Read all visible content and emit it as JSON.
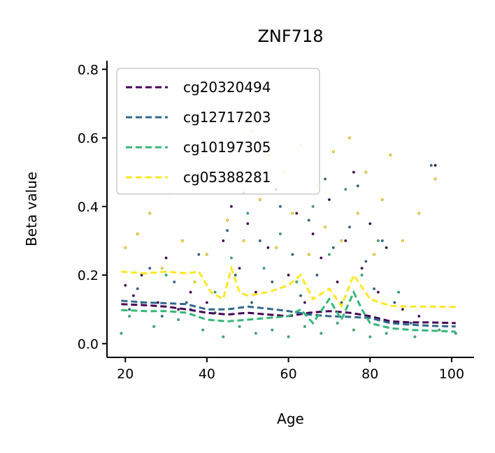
{
  "chart_data": {
    "type": "scatter",
    "title": "ZNF718",
    "xlabel": "Age",
    "ylabel": "Beta value",
    "xlim": [
      15.5,
      105.5
    ],
    "ylim": [
      -0.04,
      0.825
    ],
    "xticks": [
      20,
      40,
      60,
      80,
      100
    ],
    "xtick_labels": [
      "20",
      "40",
      "60",
      "80",
      "100"
    ],
    "yticks": [
      0.0,
      0.2,
      0.4,
      0.6,
      0.8
    ],
    "ytick_labels": [
      "0.0",
      "0.2",
      "0.4",
      "0.6",
      "0.8"
    ],
    "grid": false,
    "legend_position": "upper-left",
    "series": [
      {
        "name": "cg20320494",
        "color": "#440154",
        "trend": [
          [
            19,
            0.115
          ],
          [
            25,
            0.112
          ],
          [
            30,
            0.108
          ],
          [
            35,
            0.1
          ],
          [
            40,
            0.09
          ],
          [
            45,
            0.085
          ],
          [
            50,
            0.09
          ],
          [
            55,
            0.085
          ],
          [
            60,
            0.08
          ],
          [
            65,
            0.09
          ],
          [
            70,
            0.095
          ],
          [
            75,
            0.09
          ],
          [
            80,
            0.08
          ],
          [
            85,
            0.065
          ],
          [
            90,
            0.062
          ],
          [
            95,
            0.062
          ],
          [
            101,
            0.06
          ]
        ],
        "points": [
          [
            20,
            0.17
          ],
          [
            22,
            0.14
          ],
          [
            24,
            0.2
          ],
          [
            28,
            0.12
          ],
          [
            30,
            0.25
          ],
          [
            33,
            0.1
          ],
          [
            36,
            0.15
          ],
          [
            40,
            0.12
          ],
          [
            44,
            0.3
          ],
          [
            46,
            0.4
          ],
          [
            48,
            0.22
          ],
          [
            50,
            0.35
          ],
          [
            52,
            0.15
          ],
          [
            55,
            0.28
          ],
          [
            57,
            0.45
          ],
          [
            60,
            0.2
          ],
          [
            62,
            0.38
          ],
          [
            64,
            0.12
          ],
          [
            66,
            0.32
          ],
          [
            68,
            0.25
          ],
          [
            70,
            0.42
          ],
          [
            72,
            0.18
          ],
          [
            74,
            0.3
          ],
          [
            76,
            0.5
          ],
          [
            78,
            0.22
          ],
          [
            80,
            0.35
          ],
          [
            82,
            0.15
          ],
          [
            84,
            0.28
          ],
          [
            88,
            0.1
          ],
          [
            92,
            0.08
          ],
          [
            96,
            0.52
          ]
        ]
      },
      {
        "name": "cg12717203",
        "color": "#31688e",
        "trend": [
          [
            19,
            0.125
          ],
          [
            25,
            0.12
          ],
          [
            30,
            0.118
          ],
          [
            35,
            0.115
          ],
          [
            40,
            0.1
          ],
          [
            45,
            0.1
          ],
          [
            50,
            0.108
          ],
          [
            55,
            0.102
          ],
          [
            60,
            0.095
          ],
          [
            65,
            0.085
          ],
          [
            70,
            0.08
          ],
          [
            75,
            0.078
          ],
          [
            80,
            0.075
          ],
          [
            85,
            0.06
          ],
          [
            90,
            0.055
          ],
          [
            95,
            0.052
          ],
          [
            101,
            0.05
          ]
        ],
        "points": [
          [
            21,
            0.1
          ],
          [
            23,
            0.16
          ],
          [
            26,
            0.22
          ],
          [
            29,
            0.08
          ],
          [
            32,
            0.18
          ],
          [
            35,
            0.12
          ],
          [
            38,
            0.26
          ],
          [
            42,
            0.09
          ],
          [
            45,
            0.33
          ],
          [
            47,
            0.2
          ],
          [
            49,
            0.44
          ],
          [
            51,
            0.12
          ],
          [
            53,
            0.3
          ],
          [
            56,
            0.18
          ],
          [
            58,
            0.4
          ],
          [
            61,
            0.26
          ],
          [
            63,
            0.14
          ],
          [
            65,
            0.36
          ],
          [
            67,
            0.2
          ],
          [
            69,
            0.48
          ],
          [
            71,
            0.28
          ],
          [
            73,
            0.12
          ],
          [
            75,
            0.34
          ],
          [
            77,
            0.46
          ],
          [
            79,
            0.24
          ],
          [
            81,
            0.16
          ],
          [
            83,
            0.3
          ],
          [
            86,
            0.12
          ],
          [
            90,
            0.06
          ],
          [
            95,
            0.52
          ]
        ]
      },
      {
        "name": "cg10197305",
        "color": "#35b779",
        "trend": [
          [
            19,
            0.098
          ],
          [
            25,
            0.095
          ],
          [
            30,
            0.095
          ],
          [
            35,
            0.09
          ],
          [
            40,
            0.07
          ],
          [
            45,
            0.065
          ],
          [
            50,
            0.07
          ],
          [
            55,
            0.075
          ],
          [
            60,
            0.08
          ],
          [
            63,
            0.1
          ],
          [
            66,
            0.06
          ],
          [
            70,
            0.13
          ],
          [
            73,
            0.07
          ],
          [
            76,
            0.15
          ],
          [
            78,
            0.1
          ],
          [
            80,
            0.06
          ],
          [
            85,
            0.045
          ],
          [
            90,
            0.04
          ],
          [
            95,
            0.038
          ],
          [
            101,
            0.035
          ]
        ],
        "points": [
          [
            19,
            0.03
          ],
          [
            21,
            0.08
          ],
          [
            24,
            0.12
          ],
          [
            27,
            0.05
          ],
          [
            30,
            0.2
          ],
          [
            33,
            0.07
          ],
          [
            36,
            0.1
          ],
          [
            39,
            0.04
          ],
          [
            42,
            0.15
          ],
          [
            44,
            0.02
          ],
          [
            46,
            0.25
          ],
          [
            48,
            0.05
          ],
          [
            50,
            0.38
          ],
          [
            52,
            0.03
          ],
          [
            54,
            0.22
          ],
          [
            56,
            0.04
          ],
          [
            58,
            0.32
          ],
          [
            60,
            0.02
          ],
          [
            62,
            0.18
          ],
          [
            64,
            0.05
          ],
          [
            66,
            0.4
          ],
          [
            68,
            0.03
          ],
          [
            70,
            0.26
          ],
          [
            72,
            0.06
          ],
          [
            74,
            0.45
          ],
          [
            76,
            0.04
          ],
          [
            78,
            0.2
          ],
          [
            80,
            0.02
          ],
          [
            82,
            0.3
          ],
          [
            84,
            0.03
          ],
          [
            87,
            0.15
          ],
          [
            91,
            0.02
          ],
          [
            97,
            0.04
          ],
          [
            101,
            0.03
          ]
        ]
      },
      {
        "name": "cg05388281",
        "color": "#fde725",
        "trend": [
          [
            19,
            0.21
          ],
          [
            25,
            0.205
          ],
          [
            30,
            0.21
          ],
          [
            35,
            0.205
          ],
          [
            38,
            0.21
          ],
          [
            41,
            0.15
          ],
          [
            44,
            0.13
          ],
          [
            46,
            0.22
          ],
          [
            48,
            0.15
          ],
          [
            50,
            0.14
          ],
          [
            55,
            0.15
          ],
          [
            60,
            0.17
          ],
          [
            63,
            0.2
          ],
          [
            66,
            0.13
          ],
          [
            70,
            0.16
          ],
          [
            73,
            0.11
          ],
          [
            76,
            0.2
          ],
          [
            80,
            0.13
          ],
          [
            85,
            0.11
          ],
          [
            90,
            0.108
          ],
          [
            95,
            0.108
          ],
          [
            101,
            0.107
          ]
        ],
        "points": [
          [
            20,
            0.28
          ],
          [
            23,
            0.32
          ],
          [
            26,
            0.38
          ],
          [
            29,
            0.22
          ],
          [
            31,
            0.44
          ],
          [
            34,
            0.3
          ],
          [
            37,
            0.18
          ],
          [
            40,
            0.26
          ],
          [
            43,
            0.5
          ],
          [
            45,
            0.36
          ],
          [
            47,
            0.58
          ],
          [
            49,
            0.3
          ],
          [
            51,
            0.62
          ],
          [
            53,
            0.42
          ],
          [
            55,
            0.55
          ],
          [
            57,
            0.28
          ],
          [
            59,
            0.5
          ],
          [
            61,
            0.38
          ],
          [
            63,
            0.58
          ],
          [
            65,
            0.26
          ],
          [
            67,
            0.46
          ],
          [
            69,
            0.34
          ],
          [
            71,
            0.56
          ],
          [
            73,
            0.3
          ],
          [
            75,
            0.6
          ],
          [
            77,
            0.38
          ],
          [
            79,
            0.5
          ],
          [
            81,
            0.26
          ],
          [
            83,
            0.42
          ],
          [
            85,
            0.55
          ],
          [
            88,
            0.3
          ],
          [
            92,
            0.38
          ],
          [
            96,
            0.48
          ]
        ]
      }
    ]
  }
}
